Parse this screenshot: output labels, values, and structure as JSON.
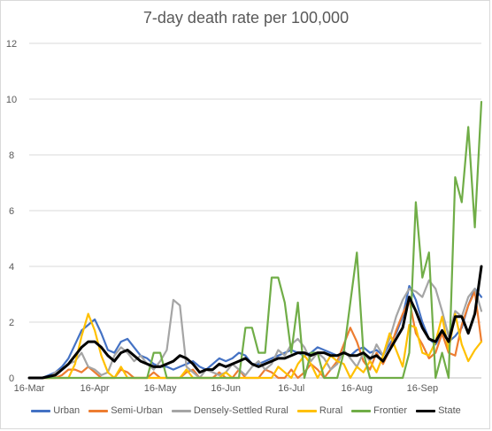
{
  "chart_data": {
    "type": "line",
    "title": "7-day death rate per 100,000",
    "xlabel": "",
    "ylabel": "",
    "ylim": [
      0,
      12
    ],
    "y_ticks": [
      0,
      2,
      4,
      6,
      8,
      10,
      12
    ],
    "x_tick_labels": [
      "16-Mar",
      "16-Apr",
      "16-May",
      "16-Jun",
      "16-Jul",
      "16-Aug",
      "16-Sep"
    ],
    "x": [
      "16-Mar",
      "19-Mar",
      "22-Mar",
      "25-Mar",
      "28-Mar",
      "31-Mar",
      "3-Apr",
      "6-Apr",
      "9-Apr",
      "12-Apr",
      "15-Apr",
      "18-Apr",
      "21-Apr",
      "24-Apr",
      "27-Apr",
      "30-Apr",
      "3-May",
      "6-May",
      "9-May",
      "12-May",
      "15-May",
      "18-May",
      "21-May",
      "24-May",
      "27-May",
      "30-May",
      "2-Jun",
      "5-Jun",
      "8-Jun",
      "11-Jun",
      "14-Jun",
      "17-Jun",
      "20-Jun",
      "23-Jun",
      "26-Jun",
      "29-Jun",
      "2-Jul",
      "5-Jul",
      "8-Jul",
      "11-Jul",
      "14-Jul",
      "17-Jul",
      "20-Jul",
      "23-Jul",
      "26-Jul",
      "29-Jul",
      "1-Aug",
      "4-Aug",
      "7-Aug",
      "10-Aug",
      "13-Aug",
      "16-Aug",
      "19-Aug",
      "22-Aug",
      "25-Aug",
      "28-Aug",
      "31-Aug",
      "3-Sep",
      "6-Sep",
      "9-Sep",
      "12-Sep",
      "15-Sep",
      "18-Sep",
      "21-Sep",
      "24-Sep",
      "27-Sep",
      "30-Sep",
      "3-Oct",
      "6-Oct",
      "9-Oct"
    ],
    "series": [
      {
        "name": "Urban",
        "color": "#4472c4",
        "values": [
          0,
          0,
          0,
          0.1,
          0.2,
          0.4,
          0.7,
          1.2,
          1.7,
          1.9,
          2.1,
          1.6,
          1.0,
          0.9,
          1.3,
          1.4,
          1.1,
          0.8,
          0.7,
          0.5,
          0.4,
          0.4,
          0.3,
          0.4,
          0.5,
          0.6,
          0.4,
          0.3,
          0.5,
          0.7,
          0.6,
          0.7,
          0.9,
          0.8,
          0.5,
          0.5,
          0.6,
          0.7,
          0.8,
          0.9,
          1.0,
          0.9,
          0.8,
          0.9,
          1.1,
          1.0,
          0.9,
          0.8,
          0.9,
          0.8,
          1.0,
          1.1,
          0.9,
          1.0,
          0.8,
          1.2,
          1.6,
          2.2,
          3.3,
          2.8,
          2.0,
          1.4,
          1.2,
          1.6,
          1.3,
          1.5,
          1.8,
          2.6,
          3.2,
          2.9
        ]
      },
      {
        "name": "Semi-Urban",
        "color": "#ed7d31",
        "values": [
          0,
          0,
          0,
          0,
          0,
          0.1,
          0.3,
          0.3,
          0.2,
          0.4,
          0.2,
          0,
          0,
          0,
          0.3,
          0.2,
          0,
          0,
          0,
          0.2,
          0,
          0,
          0,
          0,
          0.2,
          0.3,
          0,
          0,
          0,
          0.2,
          0,
          0,
          0.3,
          0,
          0,
          0,
          0.3,
          0.2,
          0,
          0,
          0.3,
          0,
          0.2,
          0.5,
          0.3,
          0,
          0.3,
          0.6,
          1.2,
          1.8,
          1.3,
          0.6,
          0.3,
          0.9,
          0.5,
          1.0,
          1.7,
          2.3,
          2.8,
          1.6,
          1.2,
          0.7,
          0.9,
          1.6,
          0.9,
          0.8,
          1.9,
          2.6,
          3.1,
          1.3
        ]
      },
      {
        "name": "Densely-Settled Rural",
        "color": "#a5a5a5",
        "values": [
          0,
          0,
          0,
          0,
          0.2,
          0.3,
          0.5,
          0.6,
          0.9,
          0.4,
          0.3,
          0.1,
          0.2,
          0.8,
          1.1,
          0.9,
          0.6,
          0.8,
          0.5,
          0.3,
          0.6,
          1.0,
          2.8,
          2.6,
          0.4,
          0.2,
          0,
          0.3,
          0.2,
          0.1,
          0.2,
          0.5,
          0.3,
          0.1,
          0.4,
          0.6,
          0.3,
          0.5,
          1.0,
          0.8,
          1.2,
          1.4,
          1.1,
          0.6,
          0.9,
          0.7,
          0.3,
          0.5,
          1.0,
          0.7,
          0.4,
          0.9,
          0.6,
          1.2,
          0.8,
          1.4,
          2.2,
          2.8,
          3.2,
          3.1,
          2.9,
          3.5,
          3.2,
          2.4,
          1.5,
          2.4,
          2.2,
          2.9,
          3.2,
          2.4
        ]
      },
      {
        "name": "Rural",
        "color": "#ffc000",
        "values": [
          0,
          0,
          0,
          0,
          0,
          0,
          0,
          0.5,
          1.5,
          2.3,
          1.7,
          0.8,
          0.2,
          0,
          0.4,
          0,
          0,
          0,
          0,
          0,
          0,
          0,
          0,
          0,
          0.3,
          0,
          0,
          0,
          0,
          0,
          0.2,
          0,
          0,
          0,
          0,
          0,
          0,
          0,
          0.4,
          0.2,
          0,
          0.5,
          0.8,
          0.5,
          0,
          0.4,
          0.8,
          0.6,
          0.5,
          0,
          0.4,
          0.2,
          0.6,
          0.2,
          0.8,
          1.6,
          1.0,
          0.4,
          1.9,
          1.8,
          0.9,
          0.8,
          1.3,
          2.2,
          1.0,
          2.3,
          1.2,
          0.6,
          1.0,
          1.3
        ]
      },
      {
        "name": "Frontier",
        "color": "#70ad47",
        "values": [
          0,
          0,
          0,
          0,
          0,
          0,
          0,
          0,
          0,
          0,
          0,
          0,
          0,
          0,
          0,
          0,
          0,
          0,
          0,
          0.9,
          0.9,
          0,
          0,
          0,
          0,
          0,
          0,
          0,
          0,
          0,
          0,
          0,
          0,
          1.8,
          1.8,
          0.9,
          0.9,
          3.6,
          3.6,
          2.7,
          0.9,
          2.7,
          0,
          0.9,
          0.9,
          0,
          0,
          0,
          0.9,
          2.7,
          4.5,
          0.9,
          0,
          0,
          0,
          0,
          0,
          0,
          0.9,
          6.3,
          3.6,
          4.5,
          0,
          0.9,
          0,
          7.2,
          6.3,
          9.0,
          5.4,
          9.9
        ]
      },
      {
        "name": "State",
        "color": "#000000",
        "values": [
          0,
          0,
          0,
          0.05,
          0.1,
          0.3,
          0.5,
          0.8,
          1.1,
          1.3,
          1.3,
          1.1,
          0.8,
          0.6,
          0.9,
          1.0,
          0.8,
          0.6,
          0.5,
          0.4,
          0.4,
          0.5,
          0.6,
          0.8,
          0.7,
          0.5,
          0.2,
          0.3,
          0.3,
          0.5,
          0.4,
          0.5,
          0.6,
          0.7,
          0.5,
          0.4,
          0.5,
          0.6,
          0.7,
          0.7,
          0.8,
          0.9,
          0.9,
          0.8,
          0.9,
          0.9,
          0.8,
          0.8,
          0.9,
          0.8,
          0.8,
          0.9,
          0.7,
          0.8,
          0.6,
          1.0,
          1.4,
          1.8,
          2.9,
          2.4,
          1.8,
          1.4,
          1.3,
          1.7,
          1.3,
          2.2,
          2.2,
          1.6,
          2.3,
          4.0
        ]
      }
    ],
    "legend_position": "bottom",
    "grid": true
  }
}
